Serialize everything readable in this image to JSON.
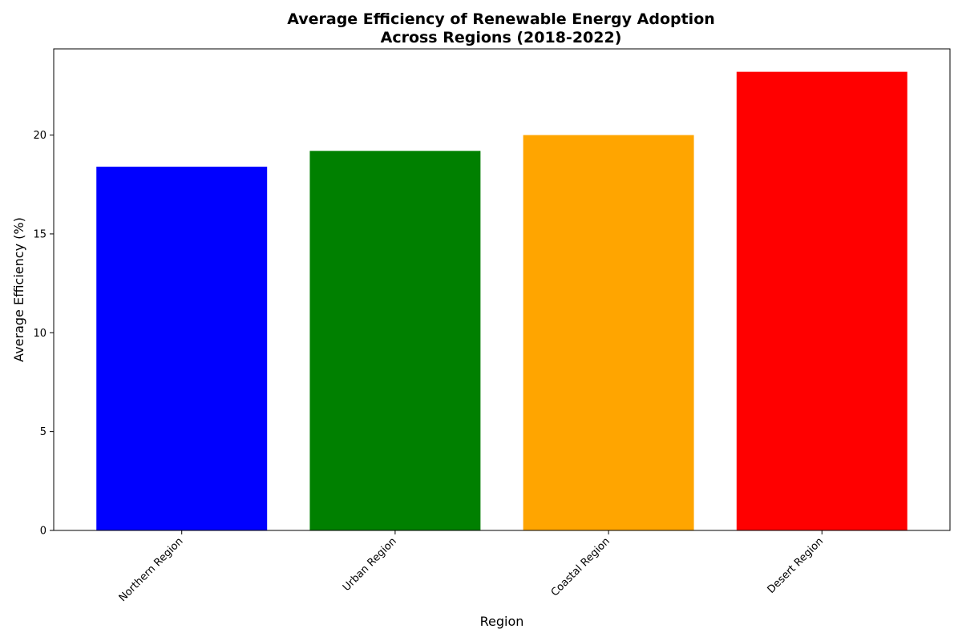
{
  "chart_data": {
    "type": "bar",
    "title": "Average Efficiency of Renewable Energy Adoption\nAcross Regions (2018-2022)",
    "title_lines": [
      "Average Efficiency of Renewable Energy Adoption",
      "Across Regions (2018-2022)"
    ],
    "xlabel": "Region",
    "ylabel": "Average Efficiency (%)",
    "categories": [
      "Northern Region",
      "Urban Region",
      "Coastal Region",
      "Desert Region"
    ],
    "values": [
      18.4,
      19.2,
      20.0,
      23.2
    ],
    "colors": [
      "#0000ff",
      "#008000",
      "#ffa500",
      "#ff0000"
    ],
    "ylim": [
      0,
      24.36
    ],
    "yticks": [
      0,
      5,
      10,
      15,
      20
    ],
    "grid": false,
    "legend": "none"
  }
}
